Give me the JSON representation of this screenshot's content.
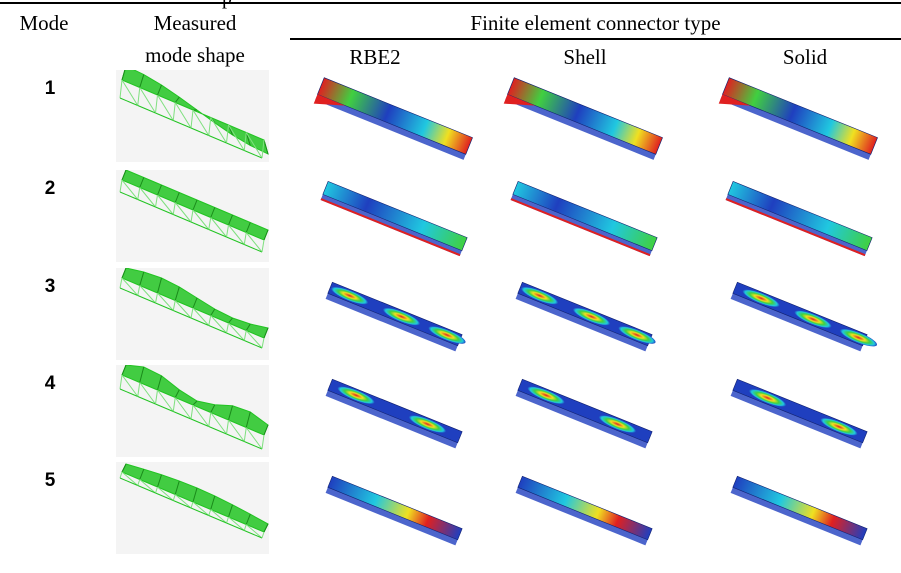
{
  "header": {
    "partial_top_text": "p",
    "col_mode": "Mode",
    "col_measured_line1": "Measured",
    "col_measured_line2": "mode shape",
    "group_title": "Finite element connector type",
    "col_rbe2": "RBE2",
    "col_shell": "Shell",
    "col_solid": "Solid"
  },
  "rows": [
    {
      "mode": "1",
      "measured": "measured-mode-1-wireframe",
      "rbe2": "rbe2-mode-1-contour",
      "shell": "shell-mode-1-contour",
      "solid": "solid-mode-1-contour"
    },
    {
      "mode": "2",
      "measured": "measured-mode-2-wireframe",
      "rbe2": "rbe2-mode-2-contour",
      "shell": "shell-mode-2-contour",
      "solid": "solid-mode-2-contour"
    },
    {
      "mode": "3",
      "measured": "measured-mode-3-wireframe",
      "rbe2": "rbe2-mode-3-contour",
      "shell": "shell-mode-3-contour",
      "solid": "solid-mode-3-contour"
    },
    {
      "mode": "4",
      "measured": "measured-mode-4-wireframe",
      "rbe2": "rbe2-mode-4-contour",
      "shell": "shell-mode-4-contour",
      "solid": "solid-mode-4-contour"
    },
    {
      "mode": "5",
      "measured": "measured-mode-5-wireframe",
      "rbe2": "rbe2-mode-5-contour",
      "shell": "shell-mode-5-contour",
      "solid": "solid-mode-5-contour"
    }
  ],
  "colors": {
    "wireframe_green": "#22c422",
    "wireframe_light": "#7fe07f",
    "contour_blue": "#1f3fbf",
    "contour_cyan": "#20c8e0",
    "contour_green": "#40d040",
    "contour_yellow": "#f0e020",
    "contour_red": "#e02020"
  }
}
